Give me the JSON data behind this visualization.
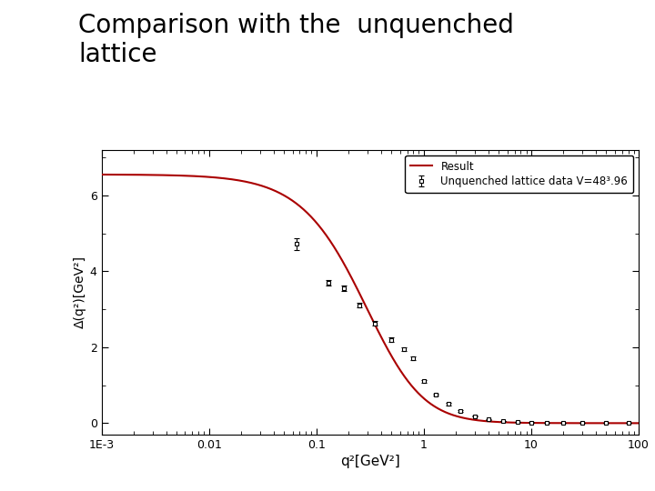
{
  "title": "Comparison with the  unquenched\nlattice",
  "title_fontsize": 20,
  "xlabel": "q²[GeV²]",
  "ylabel": "Δ(q²)[GeV²]",
  "xlim": [
    0.001,
    100
  ],
  "ylim": [
    -0.3,
    7.2
  ],
  "yticks": [
    0,
    2,
    4,
    6
  ],
  "legend_label_data": "Unquenched lattice data V=48³.96",
  "legend_label_fit": "Result",
  "line_color": "#aa0000",
  "data_color": "black",
  "background_color": "#ffffff",
  "data_points": [
    [
      0.065,
      4.72,
      0.15
    ],
    [
      0.13,
      3.7,
      0.08
    ],
    [
      0.18,
      3.55,
      0.07
    ],
    [
      0.25,
      3.1,
      0.06
    ],
    [
      0.35,
      2.62,
      0.06
    ],
    [
      0.5,
      2.2,
      0.05
    ],
    [
      0.65,
      1.95,
      0.05
    ],
    [
      0.8,
      1.7,
      0.05
    ],
    [
      1.0,
      1.1,
      0.04
    ],
    [
      1.3,
      0.75,
      0.03
    ],
    [
      1.7,
      0.5,
      0.025
    ],
    [
      2.2,
      0.32,
      0.02
    ],
    [
      3.0,
      0.18,
      0.015
    ],
    [
      4.0,
      0.1,
      0.01
    ],
    [
      5.5,
      0.055,
      0.007
    ],
    [
      7.5,
      0.03,
      0.005
    ],
    [
      10.0,
      0.018,
      0.004
    ],
    [
      14.0,
      0.01,
      0.003
    ],
    [
      20.0,
      0.006,
      0.003
    ],
    [
      30.0,
      0.003,
      0.002
    ],
    [
      50.0,
      0.002,
      0.002
    ],
    [
      80.0,
      0.001,
      0.002
    ]
  ],
  "curve_A": 6.55,
  "curve_q0": 0.42,
  "curve_n": 1.35,
  "curve_p": 1.6
}
